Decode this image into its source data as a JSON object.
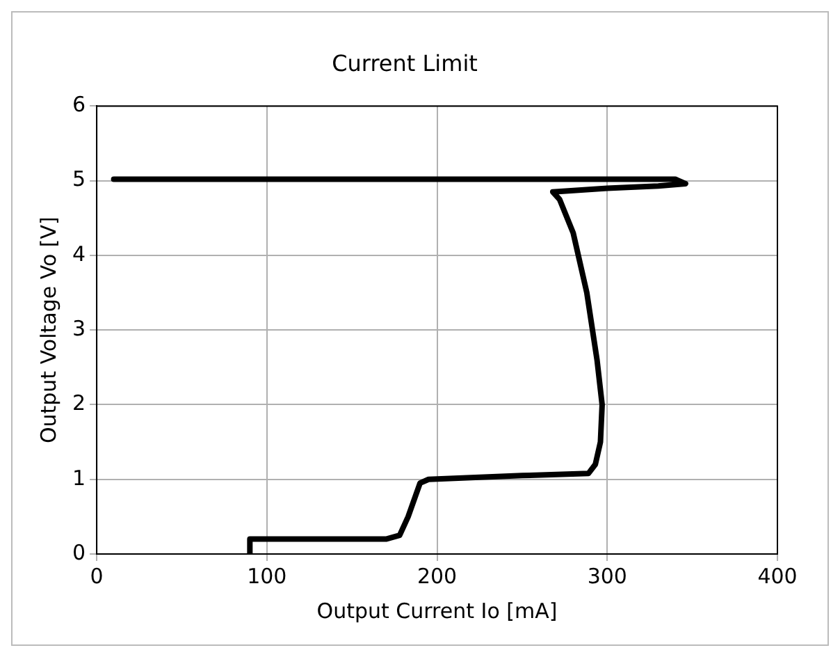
{
  "chart_data": {
    "type": "line",
    "title": "Current Limit",
    "xlabel": "Output Current Io [mA]",
    "ylabel": "Output Voltage Vo [V]",
    "series": [
      {
        "color": "#000000",
        "x": [
          10,
          340,
          346,
          330,
          300,
          268,
          272,
          280,
          288,
          294,
          297,
          296,
          293,
          289,
          250,
          195,
          190,
          183,
          178,
          170,
          90,
          90
        ],
        "values": [
          5.02,
          5.02,
          4.96,
          4.93,
          4.9,
          4.85,
          4.75,
          4.3,
          3.5,
          2.6,
          2.0,
          1.5,
          1.2,
          1.08,
          1.05,
          1.0,
          0.95,
          0.5,
          0.25,
          0.2,
          0.2,
          0
        ]
      }
    ],
    "xlim": [
      0,
      400
    ],
    "xticks": [
      0,
      100,
      200,
      300,
      400
    ],
    "ylim": [
      0,
      6
    ],
    "yticks": [
      0,
      1,
      2,
      3,
      4,
      5,
      6
    ],
    "grid": true,
    "legend": false,
    "marker": "none",
    "line_style": "solid"
  }
}
